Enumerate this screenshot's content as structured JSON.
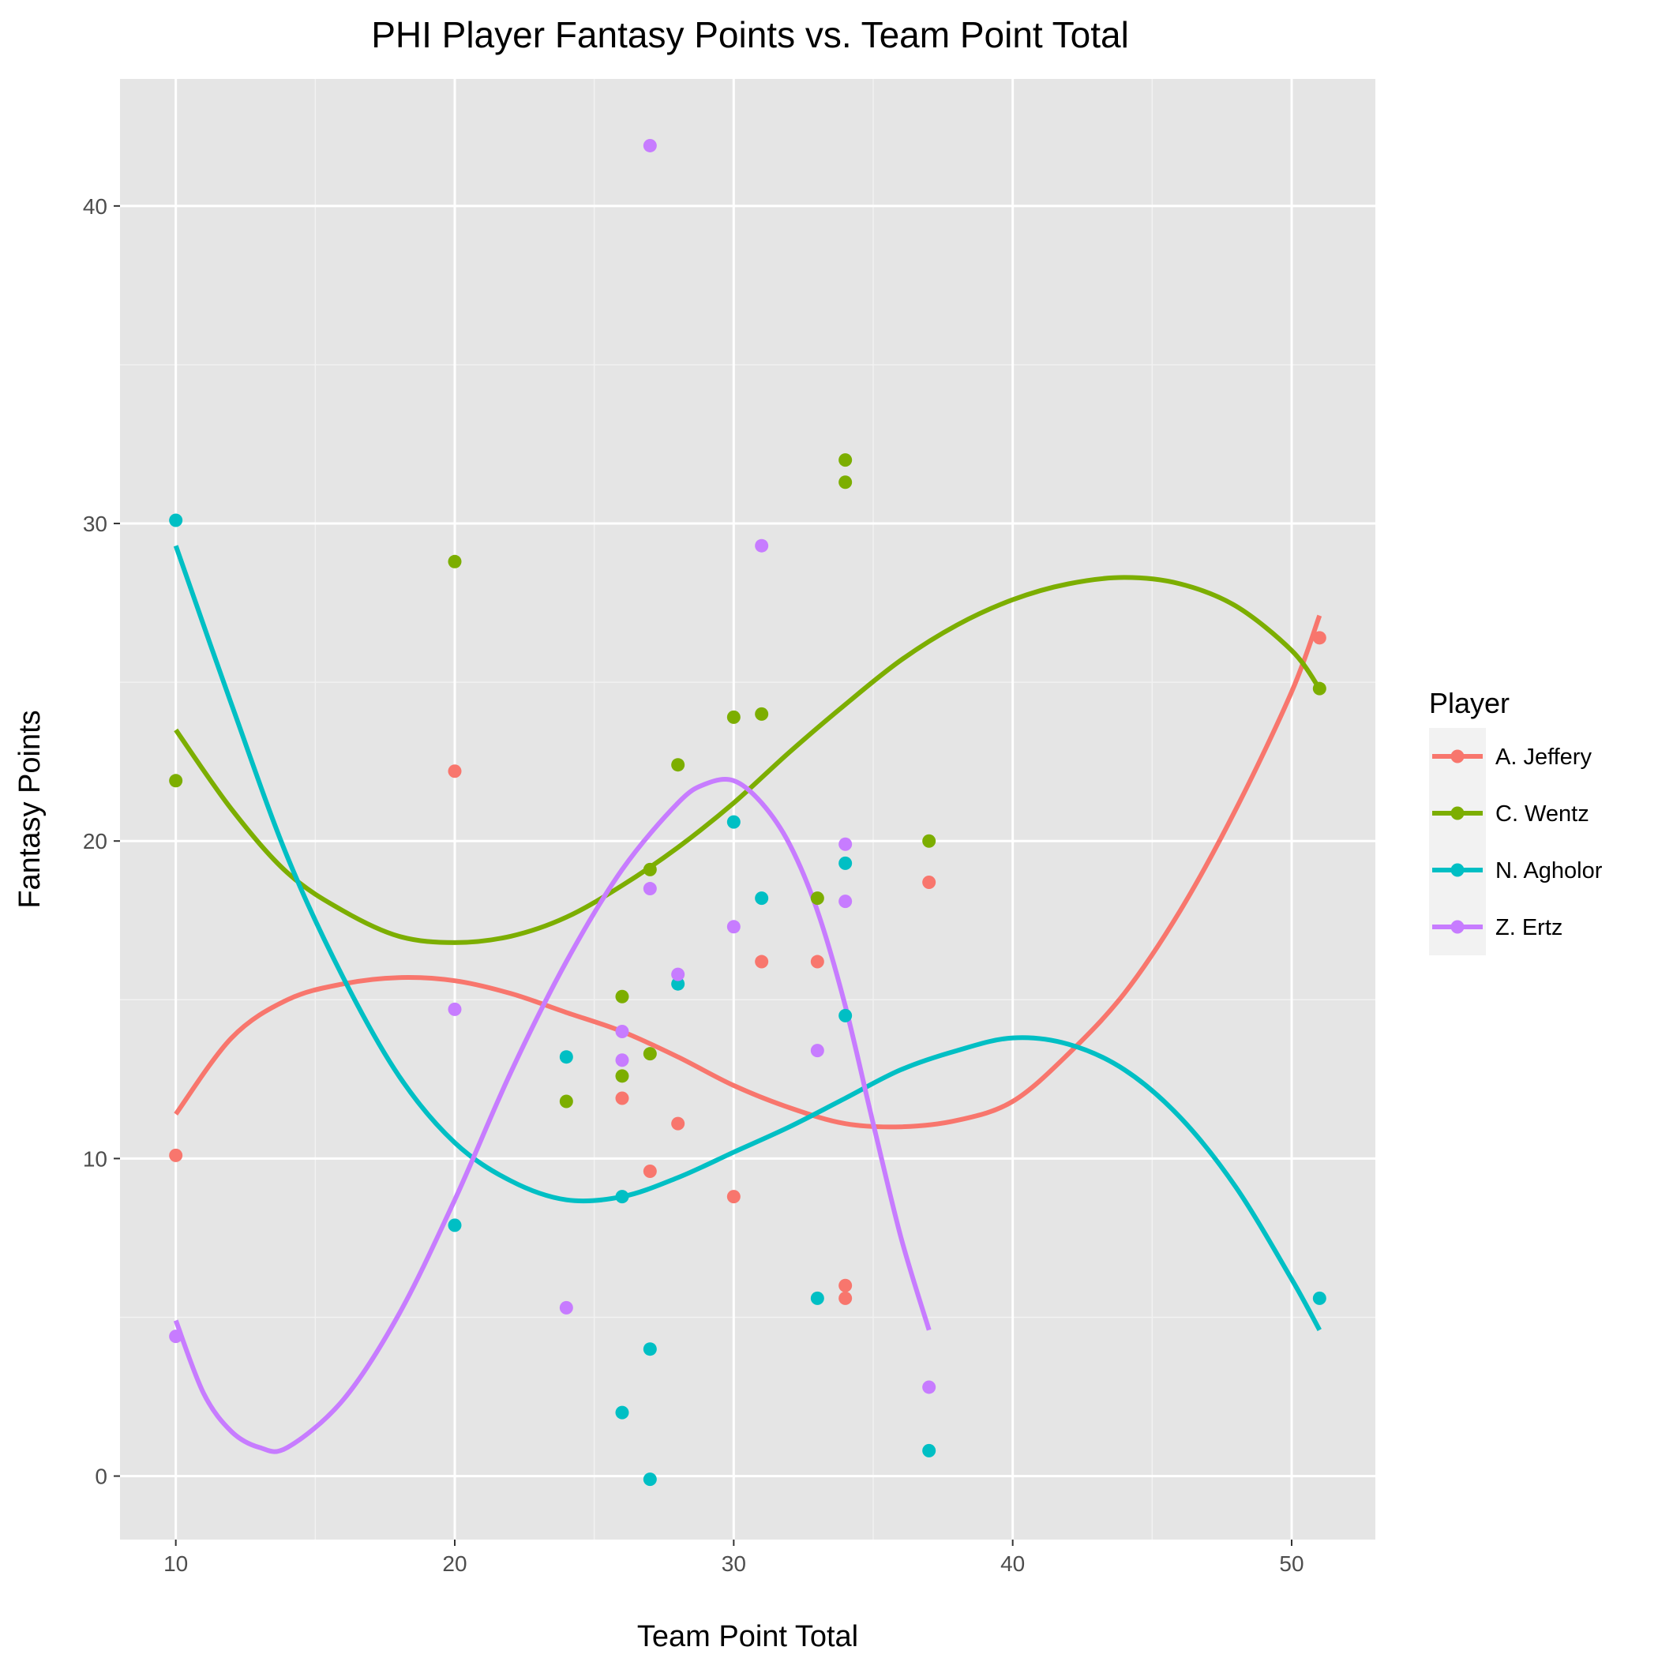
{
  "chart_data": {
    "type": "scatter",
    "title": "PHI Player Fantasy Points vs. Team Point Total",
    "xlabel": "Team Point Total",
    "ylabel": "Fantasy Points",
    "xlim": [
      8,
      53
    ],
    "ylim": [
      -2,
      44
    ],
    "x_ticks": [
      10,
      20,
      30,
      40,
      50
    ],
    "y_ticks": [
      0,
      10,
      20,
      30,
      40
    ],
    "grid": true,
    "legend": {
      "title": "Player",
      "placement": "right"
    },
    "series": [
      {
        "name": "A. Jeffery",
        "color": "#F8766D",
        "points": [
          [
            10,
            10.1
          ],
          [
            20,
            22.2
          ],
          [
            26,
            11.9
          ],
          [
            27,
            9.6
          ],
          [
            28,
            11.1
          ],
          [
            30,
            8.8
          ],
          [
            31,
            16.2
          ],
          [
            33,
            16.2
          ],
          [
            34,
            6.0
          ],
          [
            34,
            5.6
          ],
          [
            37,
            18.7
          ],
          [
            51,
            26.4
          ]
        ],
        "smooth": [
          [
            10,
            11.4
          ],
          [
            12,
            13.8
          ],
          [
            14,
            15.0
          ],
          [
            16,
            15.5
          ],
          [
            18,
            15.7
          ],
          [
            20,
            15.6
          ],
          [
            22,
            15.2
          ],
          [
            24,
            14.6
          ],
          [
            26,
            14.0
          ],
          [
            28,
            13.2
          ],
          [
            30,
            12.3
          ],
          [
            32,
            11.6
          ],
          [
            34,
            11.1
          ],
          [
            36,
            11.0
          ],
          [
            38,
            11.2
          ],
          [
            40,
            11.8
          ],
          [
            42,
            13.3
          ],
          [
            44,
            15.2
          ],
          [
            46,
            17.8
          ],
          [
            48,
            21.0
          ],
          [
            50,
            24.7
          ],
          [
            51,
            27.1
          ]
        ]
      },
      {
        "name": "C. Wentz",
        "color": "#7CAE00",
        "points": [
          [
            10,
            21.9
          ],
          [
            20,
            28.8
          ],
          [
            24,
            11.8
          ],
          [
            26,
            15.1
          ],
          [
            26,
            12.6
          ],
          [
            27,
            19.1
          ],
          [
            27,
            13.3
          ],
          [
            28,
            22.4
          ],
          [
            30,
            23.9
          ],
          [
            31,
            24.0
          ],
          [
            33,
            18.2
          ],
          [
            34,
            32.0
          ],
          [
            34,
            31.3
          ],
          [
            37,
            20.0
          ],
          [
            51,
            24.8
          ]
        ],
        "smooth": [
          [
            10,
            23.5
          ],
          [
            12,
            21.0
          ],
          [
            14,
            19.0
          ],
          [
            16,
            17.8
          ],
          [
            18,
            17.0
          ],
          [
            20,
            16.8
          ],
          [
            22,
            17.0
          ],
          [
            24,
            17.6
          ],
          [
            26,
            18.6
          ],
          [
            28,
            19.8
          ],
          [
            30,
            21.2
          ],
          [
            32,
            22.8
          ],
          [
            34,
            24.3
          ],
          [
            36,
            25.7
          ],
          [
            38,
            26.8
          ],
          [
            40,
            27.6
          ],
          [
            42,
            28.1
          ],
          [
            44,
            28.3
          ],
          [
            46,
            28.1
          ],
          [
            48,
            27.4
          ],
          [
            50,
            26.0
          ],
          [
            51,
            24.8
          ]
        ]
      },
      {
        "name": "N. Agholor",
        "color": "#00BFC4",
        "points": [
          [
            10,
            30.1
          ],
          [
            20,
            7.9
          ],
          [
            24,
            13.2
          ],
          [
            26,
            8.8
          ],
          [
            26,
            2.0
          ],
          [
            27,
            4.0
          ],
          [
            27,
            -0.1
          ],
          [
            28,
            15.5
          ],
          [
            30,
            20.6
          ],
          [
            31,
            18.2
          ],
          [
            33,
            5.6
          ],
          [
            34,
            19.3
          ],
          [
            34,
            14.5
          ],
          [
            37,
            0.8
          ],
          [
            51,
            5.6
          ]
        ],
        "smooth": [
          [
            10,
            29.3
          ],
          [
            12,
            24.3
          ],
          [
            14,
            19.5
          ],
          [
            16,
            15.7
          ],
          [
            18,
            12.6
          ],
          [
            20,
            10.5
          ],
          [
            22,
            9.3
          ],
          [
            24,
            8.7
          ],
          [
            26,
            8.8
          ],
          [
            28,
            9.4
          ],
          [
            30,
            10.2
          ],
          [
            32,
            11.0
          ],
          [
            34,
            11.9
          ],
          [
            36,
            12.8
          ],
          [
            38,
            13.4
          ],
          [
            40,
            13.8
          ],
          [
            42,
            13.6
          ],
          [
            44,
            12.8
          ],
          [
            46,
            11.3
          ],
          [
            48,
            9.1
          ],
          [
            50,
            6.2
          ],
          [
            51,
            4.6
          ]
        ]
      },
      {
        "name": "Z. Ertz",
        "color": "#C77CFF",
        "points": [
          [
            10,
            4.4
          ],
          [
            20,
            14.7
          ],
          [
            24,
            5.3
          ],
          [
            26,
            14.0
          ],
          [
            26,
            13.1
          ],
          [
            27,
            41.9
          ],
          [
            27,
            18.5
          ],
          [
            28,
            15.8
          ],
          [
            30,
            17.3
          ],
          [
            31,
            29.3
          ],
          [
            33,
            13.4
          ],
          [
            34,
            19.9
          ],
          [
            34,
            18.1
          ],
          [
            37,
            2.8
          ]
        ],
        "smooth": [
          [
            10,
            4.9
          ],
          [
            11,
            2.6
          ],
          [
            12,
            1.4
          ],
          [
            13,
            0.9
          ],
          [
            14,
            0.9
          ],
          [
            16,
            2.4
          ],
          [
            18,
            5.1
          ],
          [
            20,
            8.7
          ],
          [
            22,
            12.7
          ],
          [
            24,
            16.2
          ],
          [
            26,
            19.1
          ],
          [
            28,
            21.2
          ],
          [
            29,
            21.8
          ],
          [
            30,
            21.9
          ],
          [
            31,
            21.2
          ],
          [
            32,
            19.9
          ],
          [
            33,
            17.8
          ],
          [
            34,
            14.8
          ],
          [
            35,
            11.1
          ],
          [
            36,
            7.5
          ],
          [
            37,
            4.6
          ]
        ]
      }
    ]
  }
}
